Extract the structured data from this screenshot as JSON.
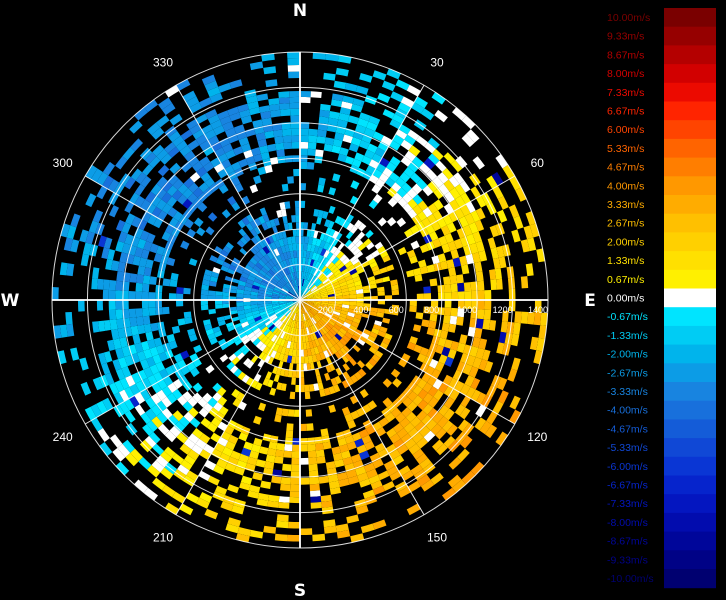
{
  "chart_data": {
    "type": "heatmap",
    "title": "",
    "subtitle": "",
    "projection": "polar",
    "compass_labels": [
      "N",
      "E",
      "S",
      "W"
    ],
    "azimuth_labels": [
      "30",
      "60",
      "120",
      "150",
      "210",
      "240",
      "300",
      "330"
    ],
    "range_labels": [
      "200",
      "400",
      "600",
      "800",
      "1000",
      "1200",
      "1400"
    ],
    "range_max": 1400,
    "range_step": 200,
    "legend_placement": "right",
    "colorscale": [
      {
        "label": "10.00m/s",
        "value": 10.0,
        "color": "#7a0000"
      },
      {
        "label": "9.33m/s",
        "value": 9.33,
        "color": "#960000"
      },
      {
        "label": "8.67m/s",
        "value": 8.67,
        "color": "#b40000"
      },
      {
        "label": "8.00m/s",
        "value": 8.0,
        "color": "#d20000"
      },
      {
        "label": "7.33m/s",
        "value": 7.33,
        "color": "#ec0a00"
      },
      {
        "label": "6.67m/s",
        "value": 6.67,
        "color": "#ff2400"
      },
      {
        "label": "6.00m/s",
        "value": 6.0,
        "color": "#ff4400"
      },
      {
        "label": "5.33m/s",
        "value": 5.33,
        "color": "#ff6400"
      },
      {
        "label": "4.67m/s",
        "value": 4.67,
        "color": "#ff7e00"
      },
      {
        "label": "4.00m/s",
        "value": 4.0,
        "color": "#ff9800"
      },
      {
        "label": "3.33m/s",
        "value": 3.33,
        "color": "#ffac00"
      },
      {
        "label": "2.67m/s",
        "value": 2.67,
        "color": "#ffc000"
      },
      {
        "label": "2.00m/s",
        "value": 2.0,
        "color": "#ffd000"
      },
      {
        "label": "1.33m/s",
        "value": 1.33,
        "color": "#ffe000"
      },
      {
        "label": "0.67m/s",
        "value": 0.67,
        "color": "#fff000"
      },
      {
        "label": "0.00m/s",
        "value": 0.0,
        "color": "#ffffff"
      },
      {
        "label": "-0.67m/s",
        "value": -0.67,
        "color": "#00e4ff"
      },
      {
        "label": "-1.33m/s",
        "value": -1.33,
        "color": "#00ccf4"
      },
      {
        "label": "-2.00m/s",
        "value": -2.0,
        "color": "#00b4ec"
      },
      {
        "label": "-2.67m/s",
        "value": -2.67,
        "color": "#0c9ce6"
      },
      {
        "label": "-3.33m/s",
        "value": -3.33,
        "color": "#1884e0"
      },
      {
        "label": "-4.00m/s",
        "value": -4.0,
        "color": "#1870dc"
      },
      {
        "label": "-4.67m/s",
        "value": -4.67,
        "color": "#145cd8"
      },
      {
        "label": "-5.33m/s",
        "value": -5.33,
        "color": "#1048d6"
      },
      {
        "label": "-6.00m/s",
        "value": -6.0,
        "color": "#0a36d4"
      },
      {
        "label": "-6.67m/s",
        "value": -6.67,
        "color": "#0624cc"
      },
      {
        "label": "-7.33m/s",
        "value": -7.33,
        "color": "#0416c0"
      },
      {
        "label": "-8.00m/s",
        "value": -8.0,
        "color": "#020cae"
      },
      {
        "label": "-8.67m/s",
        "value": -8.67,
        "color": "#00069a"
      },
      {
        "label": "-9.33m/s",
        "value": -9.33,
        "color": "#000286"
      },
      {
        "label": "-10.00m/s",
        "value": -10.0,
        "color": "#000070"
      }
    ],
    "gates": [
      {
        "r_min": 0,
        "r_max": 360,
        "fill": 1.0
      },
      {
        "r_min": 360,
        "r_max": 560,
        "fill": 0.55
      },
      {
        "r_min": 620,
        "r_max": 780,
        "fill": 0.3
      },
      {
        "r_min": 780,
        "r_max": 1080,
        "fill": 0.78
      },
      {
        "r_min": 1080,
        "r_max": 1180,
        "fill": 0.55
      },
      {
        "r_min": 1180,
        "r_max": 1400,
        "fill": 0.4
      }
    ],
    "velocity_pattern": {
      "max_approach_azimuth": 135,
      "amplitude_mps": 3.2
    },
    "grid": true
  }
}
